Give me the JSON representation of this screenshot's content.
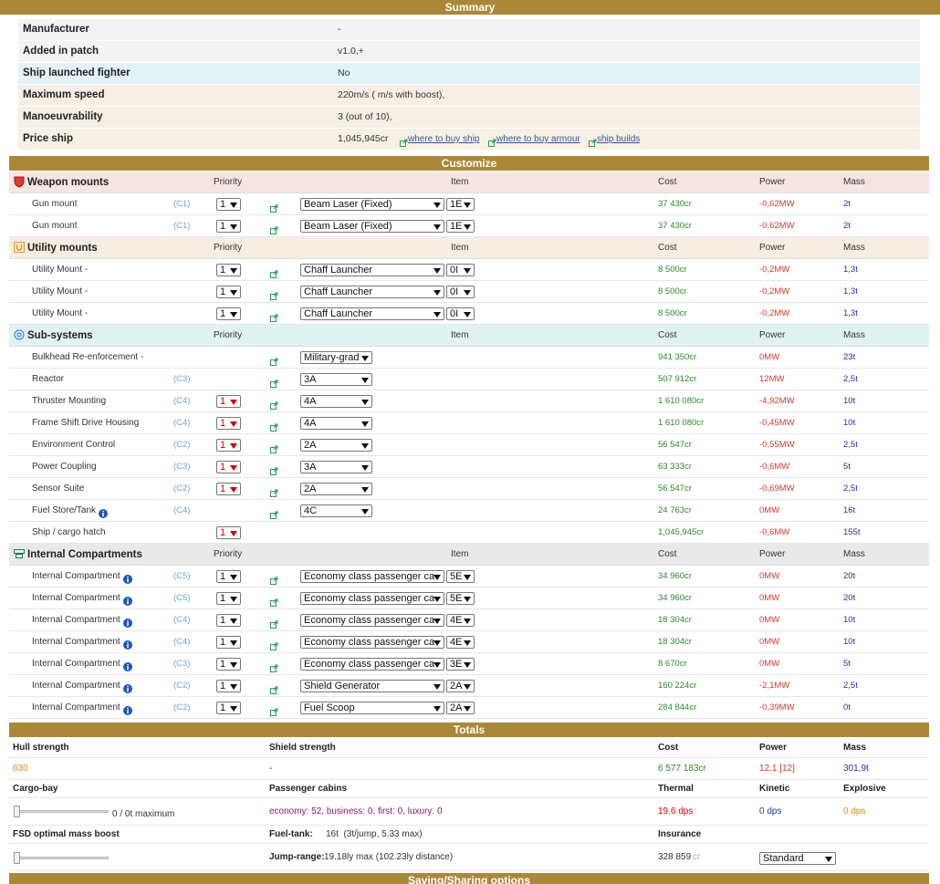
{
  "summary": {
    "title": "Summary",
    "rows": [
      {
        "label": "Manufacturer",
        "value": "-"
      },
      {
        "label": "Added in patch",
        "value": "v1.0,+"
      },
      {
        "label": "Ship launched fighter",
        "value": "No"
      },
      {
        "label": "Maximum speed",
        "value": "220m/s ( m/s with boost),"
      },
      {
        "label": "Manoeuvrability",
        "value": "3 (out of 10),"
      },
      {
        "label": "Price ship",
        "value": "1,045,945cr",
        "links": [
          "where to buy ship",
          "where to buy armour",
          "ship builds"
        ]
      }
    ]
  },
  "customize": {
    "title": "Customize",
    "sections": [
      {
        "name": "Weapon mounts",
        "columns": [
          "Priority",
          "Item",
          "Cost",
          "Power",
          "Mass"
        ],
        "rows": [
          {
            "name": "Gun mount",
            "class": "(C1)",
            "priority": "1",
            "item": "Beam Laser (Fixed)",
            "rating": "1E",
            "cost": "37 430cr",
            "power": "-0,62MW",
            "mass": "2t"
          },
          {
            "name": "Gun mount",
            "class": "(C1)",
            "priority": "1",
            "item": "Beam Laser (Fixed)",
            "rating": "1E",
            "cost": "37 430cr",
            "power": "-0,62MW",
            "mass": "2t"
          }
        ]
      },
      {
        "name": "Utility mounts",
        "columns": [
          "Priority",
          "Item",
          "Cost",
          "Power",
          "Mass"
        ],
        "rows": [
          {
            "name": "Utility Mount -",
            "priority": "1",
            "item": "Chaff Launcher",
            "rating": "0I",
            "cost": "8 500cr",
            "power": "-0,2MW",
            "mass": "1,3t"
          },
          {
            "name": "Utility Mount -",
            "priority": "1",
            "item": "Chaff Launcher",
            "rating": "0I",
            "cost": "8 500cr",
            "power": "-0,2MW",
            "mass": "1,3t"
          },
          {
            "name": "Utility Mount -",
            "priority": "1",
            "item": "Chaff Launcher",
            "rating": "0I",
            "cost": "8 500cr",
            "power": "-0,2MW",
            "mass": "1,3t"
          }
        ]
      },
      {
        "name": "Sub-systems",
        "columns": [
          "Priority",
          "Item",
          "Cost",
          "Power",
          "Mass"
        ],
        "rows": [
          {
            "name": "Bulkhead Re-enforcement -",
            "item": "Military-grad",
            "cost": "941 350cr",
            "power": "0MW",
            "mass": "23t"
          },
          {
            "name": "Reactor",
            "class": "(C3)",
            "item": "3A",
            "cost": "507 912cr",
            "power": "12MW",
            "mass": "2,5t"
          },
          {
            "name": "Thruster Mounting",
            "class": "(C4)",
            "priority": "1",
            "priority_color": "#d00000",
            "item": "4A",
            "cost": "1 610 080cr",
            "power": "-4,92MW",
            "mass": "10t"
          },
          {
            "name": "Frame Shift Drive Housing",
            "class": "(C4)",
            "priority": "1",
            "priority_color": "#d00000",
            "item": "4A",
            "cost": "1 610 080cr",
            "power": "-0,45MW",
            "mass": "10t"
          },
          {
            "name": "Environment Control",
            "class": "(C2)",
            "priority": "1",
            "priority_color": "#d00000",
            "item": "2A",
            "cost": "56 547cr",
            "power": "-0,55MW",
            "mass": "2,5t"
          },
          {
            "name": "Power Coupling",
            "class": "(C3)",
            "priority": "1",
            "priority_color": "#d00000",
            "item": "3A",
            "cost": "63 333cr",
            "power": "-0,6MW",
            "mass": "5t"
          },
          {
            "name": "Sensor Suite",
            "class": "(C2)",
            "priority": "1",
            "priority_color": "#d00000",
            "item": "2A",
            "cost": "56 547cr",
            "power": "-0,69MW",
            "mass": "2,5t"
          },
          {
            "name": "Fuel Store/Tank",
            "class": "(C4)",
            "item": "4C",
            "cost": "24 763cr",
            "power": "0MW",
            "mass": "16t"
          },
          {
            "name": "Ship / cargo hatch",
            "priority": "1",
            "priority_color": "#d00000",
            "cost": "1,045,945cr",
            "power": "-0,6MW",
            "mass": "155t"
          }
        ]
      },
      {
        "name": "Internal Compartments",
        "columns": [
          "Priority",
          "Item",
          "Cost",
          "Power",
          "Mass"
        ],
        "rows": [
          {
            "name": "Internal Compartment",
            "class": "(C5)",
            "priority": "1",
            "item": "Economy class passenger ca",
            "rating": "5E",
            "cost": "34 960cr",
            "power": "0MW",
            "mass": "20t"
          },
          {
            "name": "Internal Compartment",
            "class": "(C5)",
            "priority": "1",
            "item": "Economy class passenger ca",
            "rating": "5E",
            "cost": "34 960cr",
            "power": "0MW",
            "mass": "20t"
          },
          {
            "name": "Internal Compartment",
            "class": "(C4)",
            "priority": "1",
            "item": "Economy class passenger ca",
            "rating": "4E",
            "cost": "18 304cr",
            "power": "0MW",
            "mass": "10t"
          },
          {
            "name": "Internal Compartment",
            "class": "(C4)",
            "priority": "1",
            "item": "Economy class passenger ca",
            "rating": "4E",
            "cost": "18 304cr",
            "power": "0MW",
            "mass": "10t"
          },
          {
            "name": "Internal Compartment",
            "class": "(C3)",
            "priority": "1",
            "item": "Economy class passenger ca",
            "rating": "3E",
            "cost": "8 670cr",
            "power": "0MW",
            "mass": "5t"
          },
          {
            "name": "Internal Compartment",
            "class": "(C2)",
            "priority": "1",
            "item": "Shield Generator",
            "rating": "2A",
            "cost": "160 224cr",
            "power": "-2,1MW",
            "mass": "2,5t"
          },
          {
            "name": "Internal Compartment",
            "class": "(C2)",
            "priority": "1",
            "item": "Fuel Scoop",
            "rating": "2A",
            "cost": "284 844cr",
            "power": "-0,39MW",
            "mass": "0t"
          }
        ]
      }
    ]
  },
  "totals": {
    "title": "Totals",
    "hull": {
      "label": "Hull strength",
      "value": "630"
    },
    "shield": {
      "label": "Shield strength",
      "value": "-"
    },
    "cost": {
      "label": "Cost",
      "value": "6 577 183cr"
    },
    "power": {
      "label": "Power",
      "value": "12.1 [12]"
    },
    "mass": {
      "label": "Mass",
      "value": "301,9t"
    },
    "cargo": {
      "label": "Cargo-bay",
      "value": "0 / 0t maximum"
    },
    "passengers": {
      "label": "Passenger cabins",
      "value": "economy: 52, business: 0, first: 0, luxury: 0"
    },
    "thermal": {
      "label": "Thermal",
      "value": "19.6 dps"
    },
    "kinetic": {
      "label": "Kinetic",
      "value": "0 dps"
    },
    "explosive": {
      "label": "Explosive",
      "value": "0 dps"
    },
    "fsd": {
      "label": "FSD optimal mass boost"
    },
    "fuel": {
      "label": "Fuel-tank:",
      "value": "16t  (3t/jump, 5.33 max)"
    },
    "jump": {
      "label": "Jump-range:",
      "value": "19.18ly max (102.23ly distance)"
    },
    "insurance": {
      "label": "Insurance",
      "value": "328 859",
      "unit": "cr",
      "option": "Standard"
    }
  },
  "footer": {
    "title": "Saving/Sharing options"
  }
}
